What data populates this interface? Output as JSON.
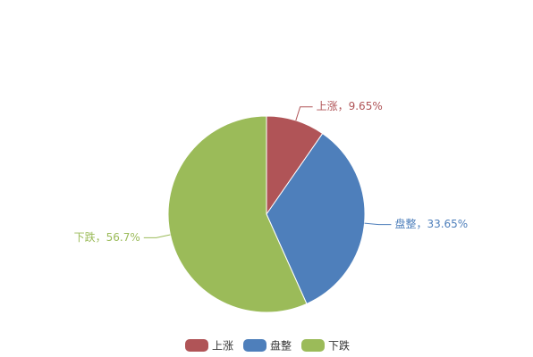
{
  "chart_data": {
    "type": "pie",
    "categories": [
      "上涨",
      "盘整",
      "下跌"
    ],
    "values": [
      9.65,
      33.65,
      56.7
    ],
    "value_labels": [
      "上涨，9.65%",
      "盘整，33.65%",
      "下跌，56.7%"
    ],
    "colors": [
      "#b05457",
      "#4e7fbb",
      "#9bbb59"
    ]
  }
}
